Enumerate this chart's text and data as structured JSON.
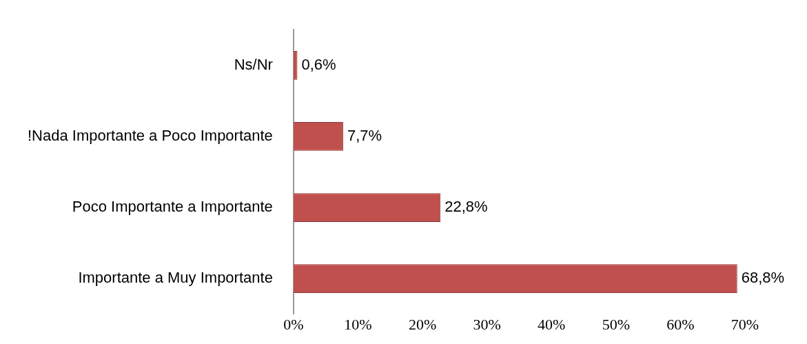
{
  "chart_data": {
    "type": "bar",
    "orientation": "horizontal",
    "categories": [
      "Ns/Nr",
      "!Nada Importante a Poco Importante",
      "Poco Importante a Importante",
      "Importante a Muy Importante"
    ],
    "values": [
      0.6,
      7.7,
      22.8,
      68.8
    ],
    "value_labels": [
      "0,6%",
      "7,7%",
      "22,8%",
      "68,8%"
    ],
    "color": "#c0504d",
    "xlim": [
      0,
      70
    ],
    "xticks": [
      {
        "value": 0,
        "label": "0%"
      },
      {
        "value": 10,
        "label": "10%"
      },
      {
        "value": 20,
        "label": "20%"
      },
      {
        "value": 30,
        "label": "30%"
      },
      {
        "value": 40,
        "label": "40%"
      },
      {
        "value": 50,
        "label": "50%"
      },
      {
        "value": 60,
        "label": "60%"
      },
      {
        "value": 70,
        "label": "70%"
      }
    ],
    "grid": false,
    "legend": false
  }
}
